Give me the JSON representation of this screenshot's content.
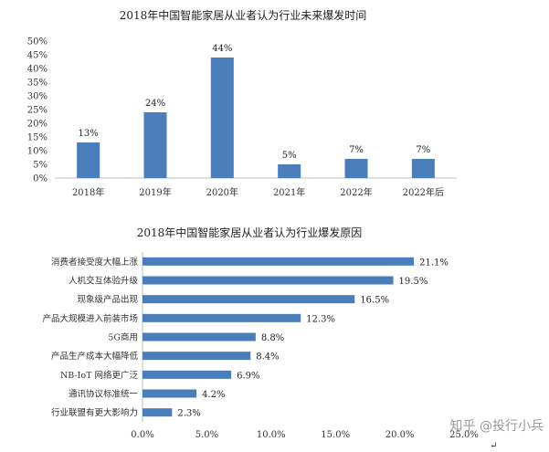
{
  "chart_data": [
    {
      "type": "bar",
      "title": "2018年中国智能家居从业者认为行业未来爆发时间",
      "categories": [
        "2018年",
        "2019年",
        "2020年",
        "2021年",
        "2022年",
        "2022年后"
      ],
      "values": [
        13,
        24,
        44,
        5,
        7,
        7
      ],
      "data_labels": [
        "13%",
        "24%",
        "44%",
        "5%",
        "7%",
        "7%"
      ],
      "ylim": [
        0,
        50
      ],
      "yticks": [
        "0%",
        "5%",
        "10%",
        "15%",
        "20%",
        "25%",
        "30%",
        "35%",
        "40%",
        "45%",
        "50%"
      ],
      "bar_color": "#4a7ebb",
      "grid": false
    },
    {
      "type": "bar",
      "orientation": "horizontal",
      "title": "2018年中国智能家居从业者认为行业爆发原因",
      "categories": [
        "消费者接受度大幅上涨",
        "人机交互体验升级",
        "现象级产品出现",
        "产品大规模进入前装市场",
        "5G商用",
        "产品生产成本大幅降低",
        "NB-IoT 网络更广泛",
        "通讯协议标准统一",
        "行业联盟有更大影响力"
      ],
      "values": [
        21.1,
        19.5,
        16.5,
        12.3,
        8.8,
        8.4,
        6.9,
        4.2,
        2.3
      ],
      "data_labels": [
        "21.1%",
        "19.5%",
        "16.5%",
        "12.3%",
        "8.8%",
        "8.4%",
        "6.9%",
        "4.2%",
        "2.3%"
      ],
      "xlim": [
        0,
        25
      ],
      "xticks": [
        "0.0%",
        "5.0%",
        "10.0%",
        "15.0%",
        "20.0%",
        "25.0%"
      ],
      "bar_color": "#4a7ebb",
      "grid": false
    }
  ],
  "watermark": "知乎 @投行小兵",
  "corner_mark": "↵"
}
